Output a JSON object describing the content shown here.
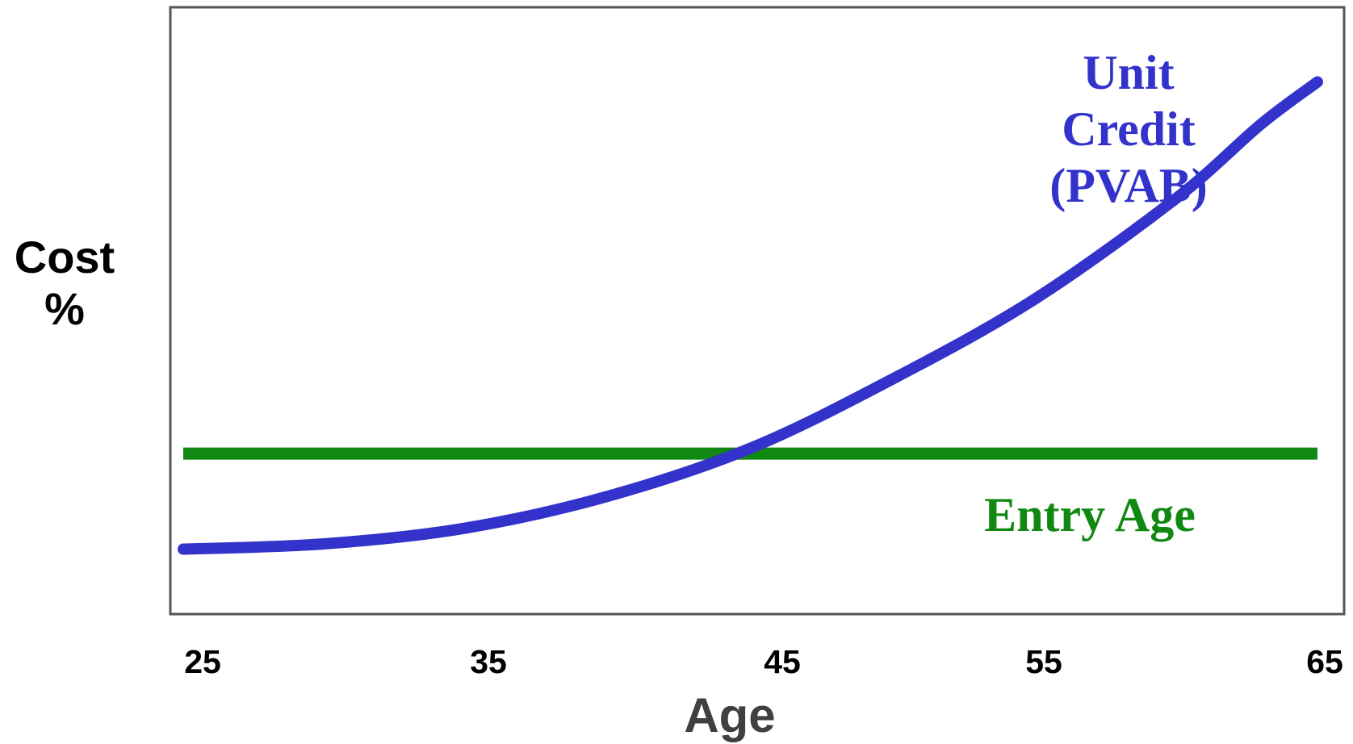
{
  "chart_data": {
    "type": "line",
    "ylabel": [
      "Cost",
      "%"
    ],
    "xlabel": "Age",
    "x_ticks": [
      "25",
      "35",
      "45",
      "55",
      "65"
    ],
    "xlim": [
      25,
      65
    ],
    "ylim": [
      0,
      10
    ],
    "grid": false,
    "legend": "none",
    "series": [
      {
        "name": "Unit Credit (PVAB)",
        "label_lines": [
          "Unit",
          "Credit",
          "(PVAB)"
        ],
        "color": "#3333cc",
        "x": [
          25,
          30,
          35,
          40,
          45,
          50,
          55,
          60,
          63,
          65
        ],
        "y": [
          0.6,
          0.7,
          1.0,
          1.6,
          2.5,
          3.8,
          5.3,
          7.2,
          8.6,
          9.4
        ]
      },
      {
        "name": "Entry Age",
        "label_lines": [
          "Entry Age"
        ],
        "color": "#118811",
        "x": [
          25,
          65
        ],
        "y": [
          2.4,
          2.4
        ]
      }
    ]
  }
}
